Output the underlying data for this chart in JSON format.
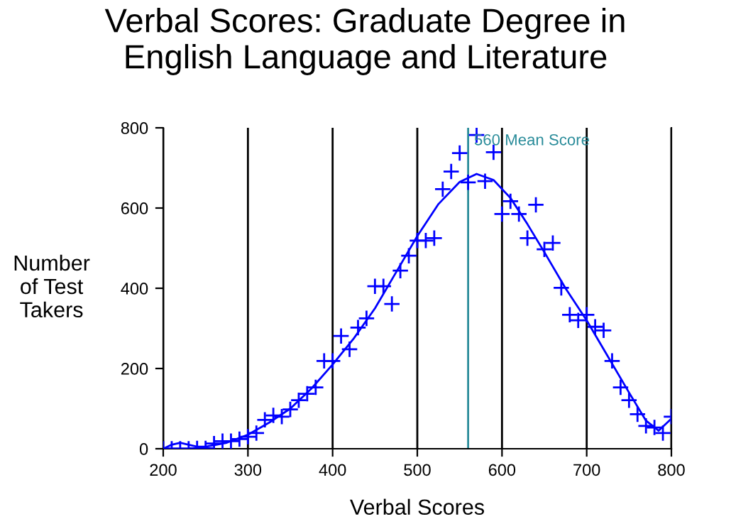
{
  "chart_data": {
    "type": "scatter",
    "title": "Verbal Scores: Graduate Degree in\nEnglish Language and Literature",
    "xlabel": "Verbal Scores",
    "ylabel": "Number\nof Test\nTakers",
    "xlim": [
      200,
      800
    ],
    "xticks": [
      200,
      300,
      400,
      500,
      600,
      700,
      800
    ],
    "ylim": [
      0,
      800
    ],
    "yticks": [
      0,
      200,
      400,
      600,
      800
    ],
    "grid": "x",
    "legend": false,
    "ref_lines": [
      {
        "axis": "x",
        "value": 560,
        "label": "560 Mean Score",
        "color": "#2a8c9a"
      }
    ],
    "series": [
      {
        "color": "#0000ff",
        "marker": "cross",
        "x": [
          200,
          210,
          220,
          230,
          240,
          250,
          260,
          270,
          280,
          290,
          300,
          310,
          320,
          330,
          340,
          350,
          360,
          370,
          380,
          390,
          400,
          410,
          420,
          430,
          440,
          450,
          460,
          470,
          480,
          490,
          500,
          510,
          520,
          530,
          540,
          550,
          560,
          570,
          580,
          590,
          600,
          610,
          620,
          630,
          640,
          650,
          660,
          670,
          680,
          690,
          700,
          710,
          720,
          730,
          740,
          750,
          760,
          770,
          780,
          790,
          800
        ],
        "values": [
          0,
          0,
          0,
          0,
          1,
          1,
          13,
          19,
          19,
          24,
          30,
          39,
          72,
          83,
          80,
          98,
          121,
          137,
          153,
          219,
          219,
          281,
          248,
          302,
          325,
          405,
          405,
          361,
          444,
          481,
          519,
          519,
          525,
          647,
          691,
          737,
          664,
          782,
          667,
          739,
          585,
          617,
          585,
          525,
          608,
          497,
          513,
          401,
          334,
          320,
          334,
          304,
          295,
          219,
          153,
          121,
          86,
          57,
          53,
          39,
          80
        ]
      },
      {
        "type": "line",
        "color": "#0000ff",
        "marker": "none",
        "line_style": "solid",
        "x": [
          200,
          210,
          220,
          230,
          240,
          250,
          275,
          300,
          325,
          350,
          375,
          400,
          425,
          450,
          475,
          500,
          525,
          550,
          570,
          590,
          610,
          630,
          650,
          675,
          700,
          725,
          750,
          770,
          785,
          800
        ],
        "values": [
          0,
          10,
          15,
          10,
          5,
          5,
          15,
          35,
          65,
          100,
          150,
          210,
          275,
          350,
          440,
          530,
          610,
          665,
          685,
          670,
          625,
          560,
          490,
          400,
          320,
          230,
          140,
          70,
          45,
          75
        ]
      }
    ]
  }
}
